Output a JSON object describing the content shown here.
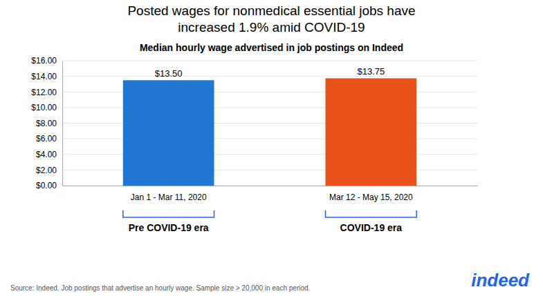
{
  "chart_data": {
    "type": "bar",
    "title": "Posted wages for nonmedical essential jobs have\nincreased 1.9% amid COVID-19",
    "subtitle": "Median hourly wage advertised in job postings on Indeed",
    "categories": [
      "Jan 1 - Mar 11, 2020",
      "Mar 12 - May 15, 2020"
    ],
    "group_labels": [
      "Pre COVID-19 era",
      "COVID-19 era"
    ],
    "values": [
      13.5,
      13.75
    ],
    "value_labels": [
      "$13.50",
      "$13.75"
    ],
    "data_labels": true,
    "colors": [
      "#2176d2",
      "#e8521a"
    ],
    "ylim": [
      0,
      16
    ],
    "yticks": [
      {
        "value": 0,
        "label": "$0.00"
      },
      {
        "value": 2,
        "label": "$2.00"
      },
      {
        "value": 4,
        "label": "$4.00"
      },
      {
        "value": 6,
        "label": "$6.00"
      },
      {
        "value": 8,
        "label": "$8.00"
      },
      {
        "value": 10,
        "label": "$10.00"
      },
      {
        "value": 12,
        "label": "$12.00"
      },
      {
        "value": 14,
        "label": "$14.00"
      },
      {
        "value": 16,
        "label": "$16.00"
      }
    ],
    "grid": true,
    "source": "Source: Indeed. Job postings that advertise an hourly wage. Sample size > 20,000 in each period.",
    "bracket_color": "#2164f3",
    "annotations": [
      {
        "text": "indeed",
        "color": "#2164f3"
      }
    ]
  }
}
